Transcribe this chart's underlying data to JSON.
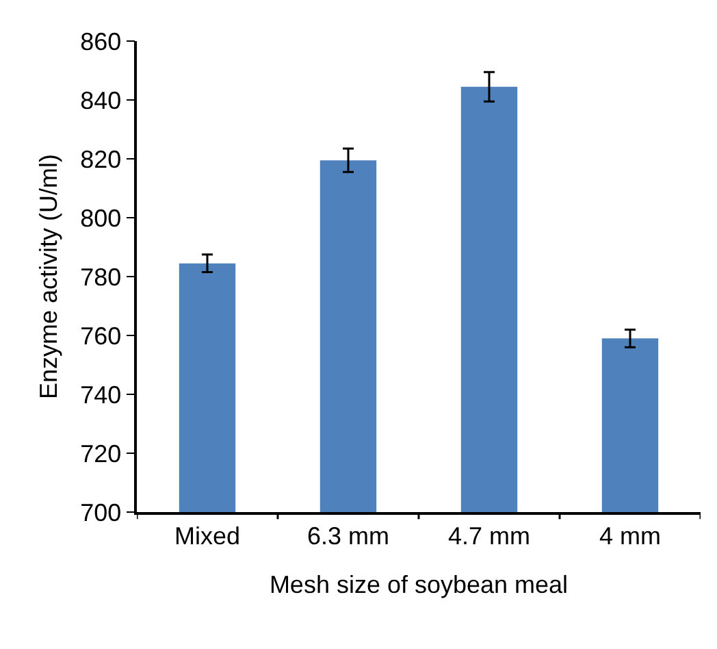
{
  "chart_data": {
    "type": "bar",
    "xlabel": "Mesh size of soybean meal",
    "ylabel": "Enzyme activity (U/ml)",
    "categories": [
      "Mixed",
      "6.3 mm",
      "4.7 mm",
      "4 mm"
    ],
    "values": [
      784.5,
      819.5,
      844.5,
      759
    ],
    "errors": [
      3,
      4,
      5,
      3
    ],
    "color": "#4f81bd",
    "ylim": [
      700,
      860
    ],
    "yticks": [
      700,
      720,
      740,
      760,
      780,
      800,
      820,
      840,
      860
    ],
    "grid": false
  }
}
